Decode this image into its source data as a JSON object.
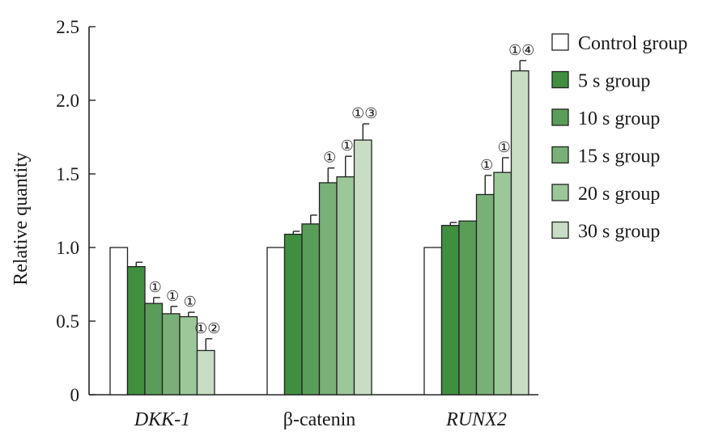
{
  "chart_data": {
    "type": "bar",
    "title": "",
    "xlabel": "",
    "ylabel": "Relative quantity",
    "ylim": [
      0,
      2.5
    ],
    "yticks": [
      "0",
      "0.5",
      "1.0",
      "1.5",
      "2.0",
      "2.5"
    ],
    "grid": false,
    "legend_position": "right",
    "categories": [
      {
        "label": "DKK-1",
        "italic": true
      },
      {
        "label": "β-catenin",
        "italic": false
      },
      {
        "label": "RUNX2",
        "italic": true
      }
    ],
    "series": [
      {
        "name": "Control group",
        "color": "#ffffff",
        "values": [
          1.0,
          1.0,
          1.0
        ],
        "errors": [
          null,
          null,
          null
        ],
        "annotations": [
          "",
          "",
          ""
        ]
      },
      {
        "name": "5 s group",
        "color": "#3f8f3f",
        "values": [
          0.87,
          1.09,
          1.15
        ],
        "errors": [
          0.03,
          0.02,
          0.02
        ],
        "annotations": [
          "",
          "",
          ""
        ]
      },
      {
        "name": "10 s group",
        "color": "#5a9d58",
        "values": [
          0.62,
          1.16,
          1.18
        ],
        "errors": [
          0.04,
          0.06,
          null
        ],
        "annotations": [
          "①",
          "",
          ""
        ]
      },
      {
        "name": "15 s group",
        "color": "#79b077",
        "values": [
          0.55,
          1.44,
          1.36
        ],
        "errors": [
          0.05,
          0.1,
          0.13
        ],
        "annotations": [
          "①",
          "①",
          "①"
        ]
      },
      {
        "name": "20 s group",
        "color": "#9cc899",
        "values": [
          0.53,
          1.48,
          1.51
        ],
        "errors": [
          0.03,
          0.14,
          0.1
        ],
        "annotations": [
          "①",
          "①",
          "①"
        ]
      },
      {
        "name": "30 s group",
        "color": "#c8ddc4",
        "values": [
          0.3,
          1.73,
          2.2
        ],
        "errors": [
          0.08,
          0.11,
          0.07
        ],
        "annotations": [
          "①②",
          "①③",
          "①④"
        ]
      }
    ]
  }
}
